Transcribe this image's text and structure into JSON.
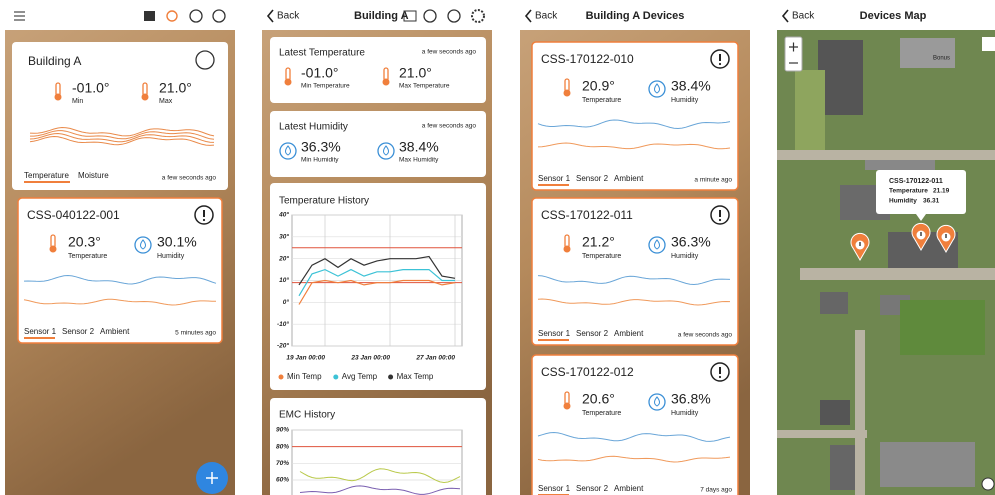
{
  "screen1": {
    "title": "Building A",
    "min": "-01.0°",
    "min_label": "Min",
    "max": "21.0°",
    "max_label": "Max",
    "tabs": [
      "Temperature",
      "Moisture"
    ],
    "updated": "a few seconds ago",
    "device": {
      "id": "CSS-040122-001",
      "temperature": "20.3°",
      "temperature_label": "Temperature",
      "humidity": "30.1%",
      "humidity_label": "Humidity",
      "sensors": [
        "Sensor 1",
        "Sensor 2",
        "Ambient"
      ],
      "updated": "5 minutes ago"
    }
  },
  "screen2": {
    "back": "Back",
    "title": "Building A",
    "latest_temperature": {
      "title": "Latest Temperature",
      "updated": "a few seconds ago",
      "min": "-01.0°",
      "min_label": "Min Temperature",
      "max": "21.0°",
      "max_label": "Max Temperature"
    },
    "latest_humidity": {
      "title": "Latest Humidity",
      "updated": "a few seconds ago",
      "min": "36.3%",
      "min_label": "Min Humidity",
      "max": "38.4%",
      "max_label": "Max Humidity"
    },
    "temperature_history": {
      "type": "line",
      "title": "Temperature History",
      "categories": [
        null,
        null,
        "19 Jan 00:00",
        null,
        null,
        null,
        null,
        "23 Jan 00:00",
        null,
        null,
        null,
        null,
        "27 Jan 00:00"
      ],
      "series": [
        {
          "name": "Min Temp",
          "color": "#f07f3c",
          "values": [
            -1,
            9,
            10,
            9,
            10,
            8,
            9,
            9,
            10,
            10,
            10,
            8,
            9
          ]
        },
        {
          "name": "Avg Temp",
          "color": "#3cc2d6",
          "values": [
            3,
            13,
            15,
            12,
            15,
            12,
            14,
            14,
            15,
            15,
            15,
            10,
            10
          ]
        },
        {
          "name": "Max Temp",
          "color": "#333333",
          "values": [
            8,
            17,
            20,
            16,
            20,
            17,
            19,
            20,
            20,
            20,
            21,
            12,
            11
          ]
        }
      ],
      "reference_lines": [
        25,
        9
      ],
      "reference_color": "#e0533c",
      "ylim": [
        -20,
        40
      ],
      "yticks": [
        {
          "value": 40,
          "label": "40°"
        },
        {
          "value": 30,
          "label": "30°"
        },
        {
          "value": 20,
          "label": "20°"
        },
        {
          "value": 10,
          "label": "10°"
        },
        {
          "value": 0,
          "label": "0°"
        },
        {
          "value": -10,
          "label": "-10°"
        },
        {
          "value": -20,
          "label": "-20°"
        }
      ]
    },
    "emc_history": {
      "title": "EMC History",
      "ylim": [
        60,
        90
      ],
      "reference_lines": [
        80
      ],
      "reference_color": "#e0533c",
      "yticks": [
        {
          "value": 90,
          "label": "90%"
        },
        {
          "value": 80,
          "label": "80%"
        },
        {
          "value": 70,
          "label": "70%"
        },
        {
          "value": 60,
          "label": "60%"
        }
      ]
    }
  },
  "screen3": {
    "back": "Back",
    "title": "Building A Devices",
    "devices": [
      {
        "id": "CSS-170122-010",
        "temperature": "20.9°",
        "temperature_label": "Temperature",
        "humidity": "38.4%",
        "humidity_label": "Humidity",
        "sensors": [
          "Sensor 1",
          "Sensor 2",
          "Ambient"
        ],
        "updated": "a minute ago"
      },
      {
        "id": "CSS-170122-011",
        "temperature": "21.2°",
        "temperature_label": "Temperature",
        "humidity": "36.3%",
        "humidity_label": "Humidity",
        "sensors": [
          "Sensor 1",
          "Sensor 2",
          "Ambient"
        ],
        "updated": "a few seconds ago"
      },
      {
        "id": "CSS-170122-012",
        "temperature": "20.6°",
        "temperature_label": "Temperature",
        "humidity": "36.8%",
        "humidity_label": "Humidity",
        "sensors": [
          "Sensor 1",
          "Sensor 2",
          "Ambient"
        ],
        "updated": "7 days ago"
      }
    ]
  },
  "screen4": {
    "back": "Back",
    "title": "Devices Map",
    "map_label": "Bonus",
    "popup": {
      "id": "CSS-170122-011",
      "temperature_label": "Temperature",
      "temperature": "21.19",
      "humidity_label": "Humidity",
      "humidity": "36.31"
    }
  }
}
